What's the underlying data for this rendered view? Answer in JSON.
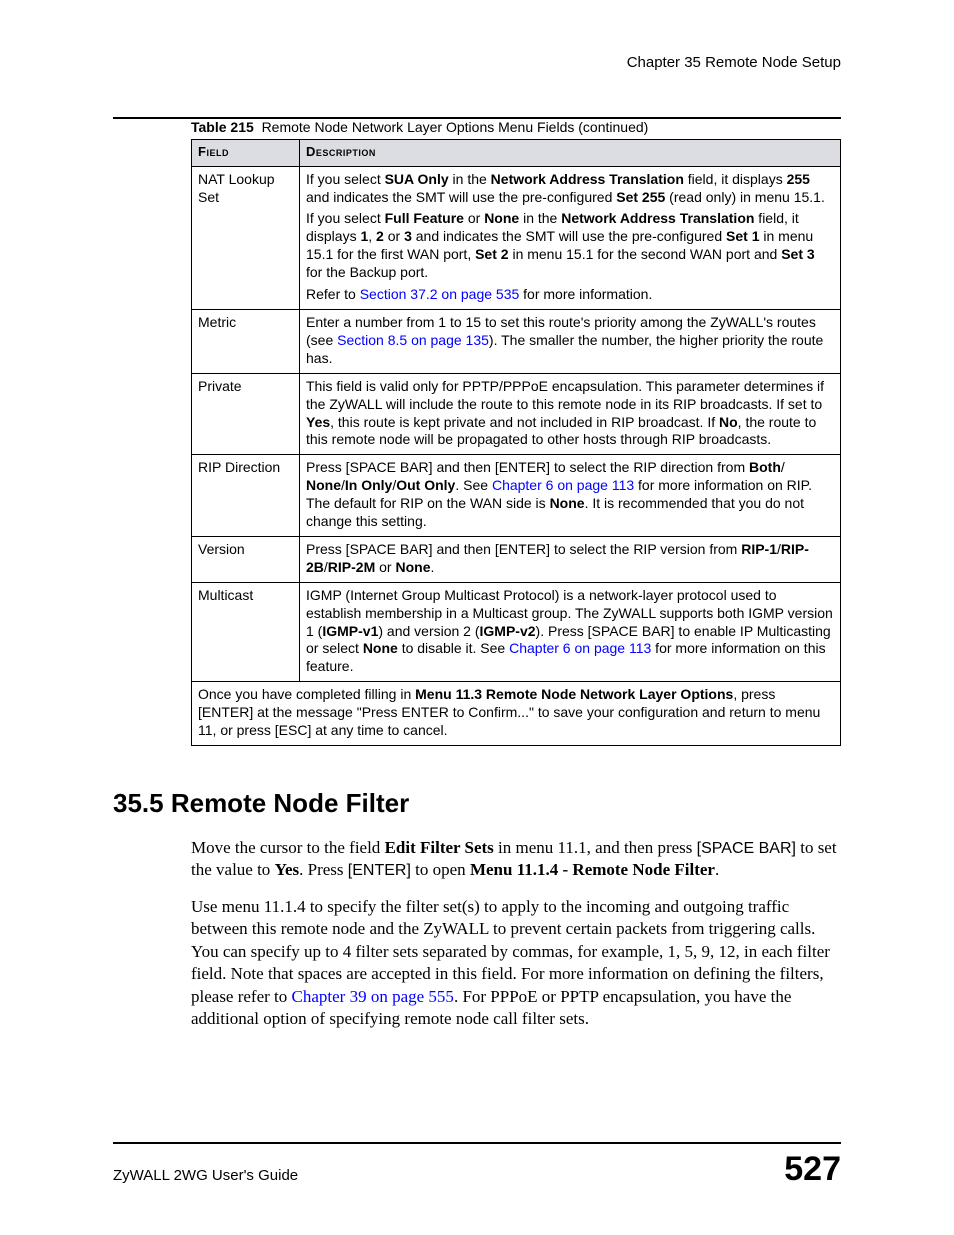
{
  "colors": {
    "link": "#0000ff",
    "header_bg": "#dcdde2",
    "text": "#000000",
    "page_bg": "#ffffff"
  },
  "header": {
    "chapter": "Chapter 35 Remote Node Setup"
  },
  "table": {
    "caption_label": "Table 215",
    "caption_text": "Remote Node Network Layer Options Menu Fields (continued)",
    "columns": {
      "field": "Field",
      "description": "Description"
    },
    "rows": {
      "nat": {
        "field": "NAT Lookup Set",
        "p1a": "If you select ",
        "p1b": "SUA Only",
        "p1c": " in the ",
        "p1d": "Network Address Translation",
        "p1e": " field, it displays ",
        "p1f": "255",
        "p1g": " and indicates the SMT will use the pre-configured ",
        "p1h": "Set 255",
        "p1i": " (read only) in menu 15.1.",
        "p2a": "If you select ",
        "p2b": "Full Feature",
        "p2c": " or ",
        "p2d": "None",
        "p2e": " in the ",
        "p2f": "Network Address Translation",
        "p2g": " field, it displays ",
        "p2h": "1",
        "p2i": ", ",
        "p2j": "2",
        "p2k": " or ",
        "p2l": "3",
        "p2m": " and indicates the SMT will use the pre-configured ",
        "p2n": "Set 1",
        "p2o": " in menu 15.1 for the first WAN port,  ",
        "p2p": "Set 2",
        "p2q": " in menu 15.1 for the second WAN port and ",
        "p2r": "Set 3",
        "p2s": " for the Backup port.",
        "p3a": "Refer to ",
        "p3link": "Section 37.2 on page 535",
        "p3b": " for more information."
      },
      "metric": {
        "field": "Metric",
        "a": "Enter a number from 1 to 15 to set this route's priority among the ZyWALL's routes (see ",
        "link": "Section 8.5 on page 135",
        "b": "). The smaller the number, the higher priority the route has."
      },
      "private": {
        "field": "Private",
        "a": "This field is valid only for PPTP/PPPoE encapsulation. This parameter determines if the ZyWALL will include the route to this remote node in its RIP broadcasts. If set to ",
        "b": "Yes",
        "c": ", this route is kept private and not included in RIP broadcast. If ",
        "d": "No",
        "e": ", the route to this remote node will be propagated to other hosts through RIP broadcasts."
      },
      "ripdir": {
        "field": "RIP Direction",
        "a": "Press [SPACE BAR] and then [ENTER] to select the RIP direction from ",
        "b": "Both",
        "s1": "/ ",
        "c": "None",
        "s2": "/",
        "d": "In Only",
        "s3": "/",
        "e": "Out Only",
        "f": ". See ",
        "link": "Chapter 6 on page 113",
        "g": " for more information on RIP. The default for RIP on the WAN side is ",
        "h": "None",
        "i": ". It is recommended that you do not change this setting."
      },
      "version": {
        "field": "Version",
        "a": "Press [SPACE BAR] and then [ENTER] to select the RIP version from ",
        "b": "RIP-1",
        "s1": "/",
        "c": "RIP-2B",
        "s2": "/",
        "d": "RIP-2M",
        "e": " or ",
        "f": "None",
        "g": "."
      },
      "multicast": {
        "field": "Multicast",
        "a": "IGMP (Internet Group Multicast Protocol) is a network-layer protocol used to establish membership in a Multicast group. The ZyWALL supports both IGMP version 1 (",
        "b": "IGMP-v1",
        "c": ") and version 2 (",
        "d": "IGMP-v2",
        "e": "). Press [SPACE BAR] to enable IP Multicasting or select ",
        "f": "None",
        "g": " to disable it. See ",
        "link": "Chapter 6 on page 113",
        "h": " for more information on this feature."
      },
      "footer": {
        "a": "Once you have completed filling in ",
        "b": "Menu 11.3 Remote Node Network Layer Options",
        "c": ", press [ENTER] at the message \"Press ENTER to Confirm...\" to save your configuration and return to menu 11, or press [ESC] at any time to cancel."
      }
    }
  },
  "section": {
    "heading": "35.5  Remote Node Filter",
    "p1": {
      "a": "Move the cursor to the field ",
      "b": "Edit Filter Sets",
      "c": " in menu 11.1, and then press ",
      "d": "[SPACE BAR]",
      "e": " to set the value to ",
      "f": "Yes",
      "g": ". Press ",
      "h": "[ENTER]",
      "i": " to open ",
      "j": "Menu 11.1.4 - Remote Node Filter",
      "k": "."
    },
    "p2": {
      "a": "Use menu 11.1.4 to specify the filter set(s) to apply to the incoming and outgoing traffic between this remote node and the ZyWALL to prevent certain packets from triggering calls. You can specify up to 4 filter sets separated by commas, for example, 1, 5, 9, 12, in each filter field. Note that spaces are accepted in this field. For more information on defining the filters, please refer to ",
      "link": "Chapter 39 on page 555",
      "b": ". For PPPoE or PPTP encapsulation, you have the additional option of specifying remote node call filter sets."
    }
  },
  "footer": {
    "guide": "ZyWALL 2WG User's Guide",
    "page": "527"
  }
}
